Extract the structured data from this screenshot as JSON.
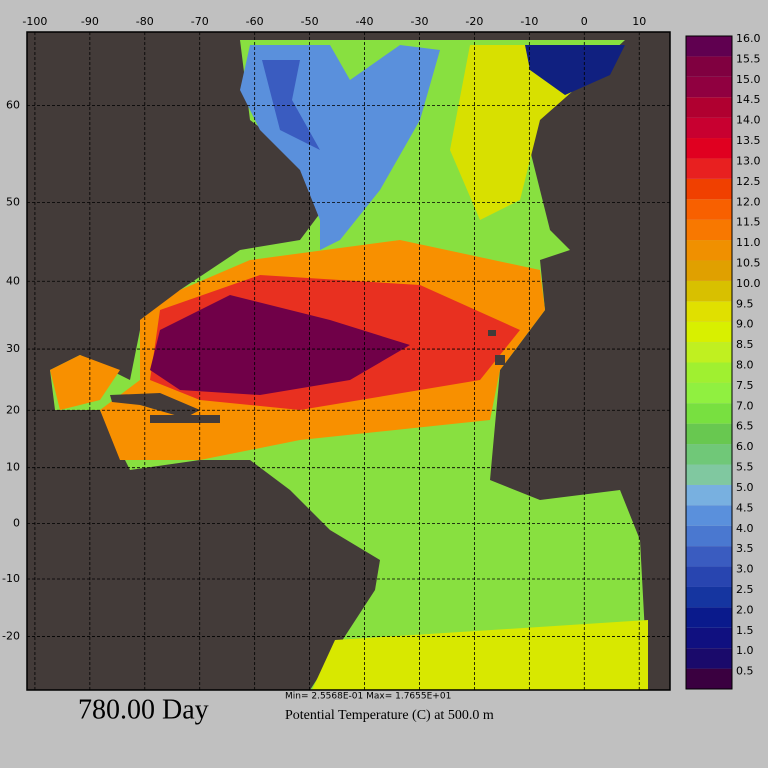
{
  "plot": {
    "projection": "mercator",
    "xlim": [
      -101.44,
      15.6
    ],
    "ylim": [
      -28.8,
      66.0
    ],
    "xticks": [
      -100,
      -90,
      -80,
      -70,
      -60,
      -50,
      -40,
      -30,
      -20,
      -10,
      0,
      10
    ],
    "yticks": [
      60,
      50,
      40,
      30,
      20,
      10,
      0,
      -10,
      -20
    ],
    "grid": true
  },
  "colorbar": {
    "range": [
      0,
      16
    ],
    "levels": [
      0.5,
      {
        "value": 1,
        "label": "1.0"
      },
      1.5,
      {
        "value": 2,
        "label": "2.0"
      },
      2.5,
      {
        "value": 3,
        "label": "3.0"
      },
      3.5,
      {
        "value": 4,
        "label": "4.0"
      },
      4.5,
      {
        "value": 5,
        "label": "5.0"
      },
      5.5,
      {
        "value": 6,
        "label": "6.0"
      },
      6.5,
      {
        "value": 7,
        "label": "7.0"
      },
      7.5,
      {
        "value": 8,
        "label": "8.0"
      },
      8.5,
      {
        "value": 9,
        "label": "9.0"
      },
      9.5,
      {
        "value": 10,
        "label": "10.0"
      },
      10.5,
      {
        "value": 11,
        "label": "11.0"
      },
      11.5,
      {
        "value": 12,
        "label": "12.0"
      },
      12.5,
      {
        "value": 13,
        "label": "13.0"
      },
      13.5,
      {
        "value": 14,
        "label": "14.0"
      },
      14.5,
      {
        "value": 15,
        "label": "15.0"
      },
      15.5,
      {
        "value": 16,
        "label": "16.0"
      }
    ],
    "colors": [
      "#3a0040",
      "#1a0a6b",
      "#101080",
      "#0a1a8c",
      "#1535a0",
      "#2845b0",
      "#3a5cc0",
      "#4a78d0",
      "#5a90dc",
      "#78b0e0",
      "#80c8a0",
      "#70c878",
      "#68c850",
      "#78e040",
      "#90f040",
      "#a0f030",
      "#c0f020",
      "#d8f000",
      "#e0e000",
      "#d8c000",
      "#e0a000",
      "#f09000",
      "#f87800",
      "#f86000",
      "#f04000",
      "#e82020",
      "#e00020",
      "#c80030",
      "#b00030",
      "#900040",
      "#800040",
      "#600050"
    ]
  },
  "footer": {
    "time": "780.00 Day",
    "stats": "Min= 2.5568E-01  Max= 1.7655E+01",
    "title": "Potential Temperature (C) at 500.0 m"
  }
}
